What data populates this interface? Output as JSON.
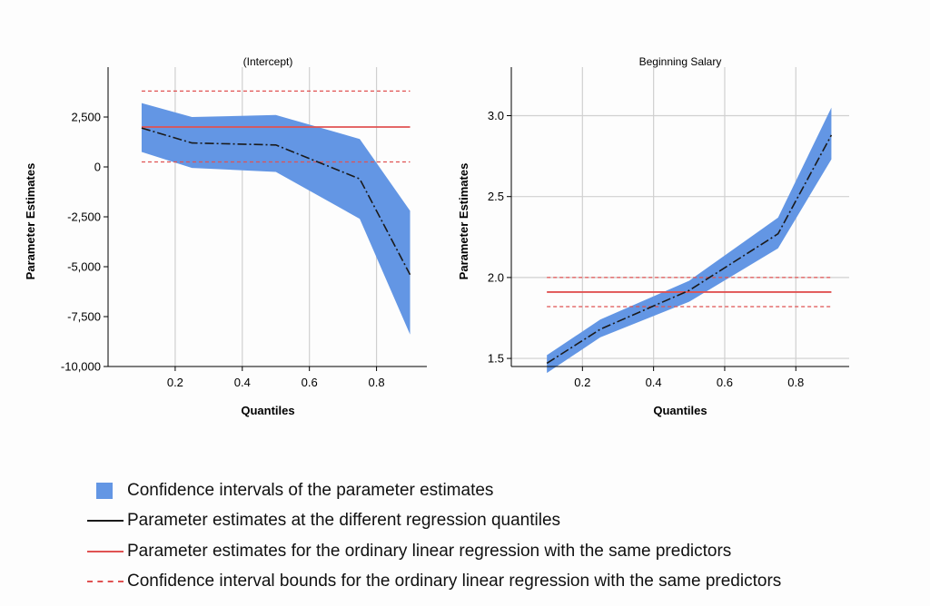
{
  "colors": {
    "band": "#6396e4",
    "estimate_line": "#1a1a1a",
    "ols_line": "#e05252",
    "grid": "#d0d0d0",
    "axis": "#000000"
  },
  "legend": [
    {
      "symbol": "band",
      "label": "Confidence intervals of the parameter estimates"
    },
    {
      "symbol": "estimate",
      "label": "Parameter estimates at the different regression quantiles"
    },
    {
      "symbol": "ols",
      "label": "Parameter estimates for the ordinary linear regression with the same predictors"
    },
    {
      "symbol": "ols-ci",
      "label": "Confidence interval bounds for the ordinary linear regression with the same predictors"
    }
  ],
  "chart_data": [
    {
      "type": "line",
      "title": "(Intercept)",
      "xlabel": "Quantiles",
      "ylabel": "Parameter Estimates",
      "xlim": [
        0.0,
        0.95
      ],
      "ylim": [
        -10000,
        5000
      ],
      "xticks": [
        0.2,
        0.4,
        0.6,
        0.8
      ],
      "xtick_labels": [
        "0.2",
        "0.4",
        "0.6",
        "0.8"
      ],
      "yticks": [
        2500,
        0,
        -2500,
        -5000,
        -7500,
        -10000
      ],
      "ytick_labels": [
        "2,500",
        "0",
        "-2,500",
        "-5,000",
        "-7,500",
        "-10,000"
      ],
      "grid": "vertical",
      "x": [
        0.1,
        0.25,
        0.5,
        0.75,
        0.9
      ],
      "estimate": [
        1950,
        1200,
        1100,
        -600,
        -5400
      ],
      "ci_lower": [
        750,
        -50,
        -250,
        -2600,
        -8400
      ],
      "ci_upper": [
        3200,
        2500,
        2600,
        1400,
        -2200
      ],
      "ols_estimate": 2000,
      "ols_ci_lower": 250,
      "ols_ci_upper": 3800
    },
    {
      "type": "line",
      "title": "Beginning Salary",
      "xlabel": "Quantiles",
      "ylabel": "Parameter Estimates",
      "xlim": [
        0.0,
        0.95
      ],
      "ylim": [
        1.45,
        3.3
      ],
      "xticks": [
        0.2,
        0.4,
        0.6,
        0.8
      ],
      "xtick_labels": [
        "0.2",
        "0.4",
        "0.6",
        "0.8"
      ],
      "yticks": [
        1.5,
        2.0,
        2.5,
        3.0
      ],
      "ytick_labels": [
        "1.5",
        "2.0",
        "2.5",
        "3.0"
      ],
      "grid": "both",
      "x": [
        0.1,
        0.25,
        0.5,
        0.75,
        0.9
      ],
      "estimate": [
        1.47,
        1.68,
        1.92,
        2.27,
        2.88
      ],
      "ci_lower": [
        1.41,
        1.63,
        1.85,
        2.18,
        2.73
      ],
      "ci_upper": [
        1.52,
        1.74,
        1.98,
        2.37,
        3.05
      ],
      "ols_estimate": 1.91,
      "ols_ci_lower": 1.82,
      "ols_ci_upper": 2.0
    }
  ]
}
